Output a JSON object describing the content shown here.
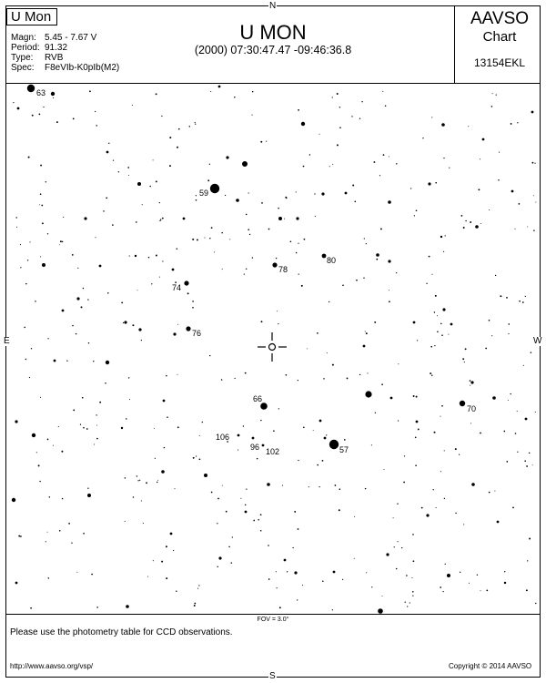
{
  "header": {
    "star_name": "U Mon",
    "title": "U MON",
    "coords": "(2000) 07:30:47.47  -09:46:36.8",
    "org": "AAVSO",
    "chart_word": "Chart",
    "chart_id": "13154EKL"
  },
  "info": [
    {
      "label": "Magn:",
      "value": "5.45 - 7.67 V"
    },
    {
      "label": "Period:",
      "value": "91.32"
    },
    {
      "label": "Type:",
      "value": "RVB"
    },
    {
      "label": "Spec:",
      "value": "F8eVIb-K0pIb(M2)"
    }
  ],
  "compass": {
    "north": "N",
    "south": "S",
    "east": "E",
    "west": "W"
  },
  "fov": "FOV = 3.0°",
  "footer": {
    "ccd_note": "Please use the photometry table for CCD observations.",
    "url": "http://www.aavso.org/vsp/",
    "copyright": "Copyright © 2014 AAVSO"
  },
  "comparison_labels": [
    "63",
    "59",
    "78",
    "80",
    "74",
    "76",
    "66",
    "70",
    "106",
    "96",
    "102",
    "57"
  ]
}
